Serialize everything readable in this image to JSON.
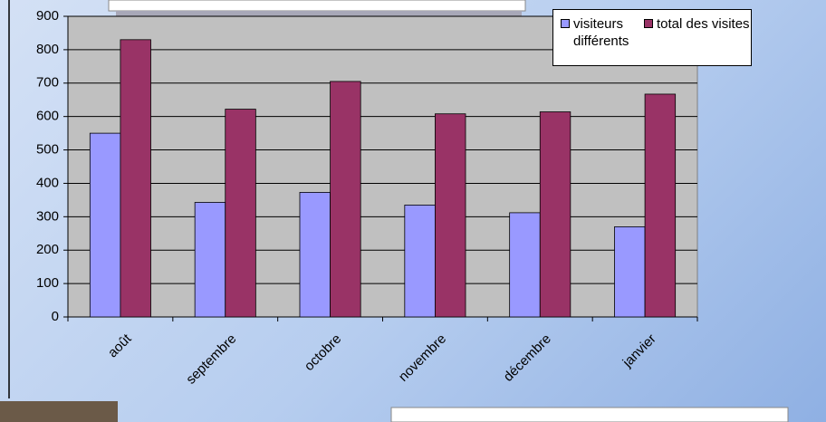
{
  "chart_data": {
    "type": "bar",
    "categories": [
      "août",
      "septembre",
      "octobre",
      "novembre",
      "décembre",
      "janvier"
    ],
    "series": [
      {
        "name": "visiteurs différents",
        "color": "#9999ff",
        "values": [
          550,
          343,
          373,
          335,
          312,
          270
        ]
      },
      {
        "name": "total des visites",
        "color": "#993366",
        "values": [
          830,
          622,
          705,
          608,
          614,
          667
        ]
      }
    ],
    "ylim": [
      0,
      900
    ],
    "yticks": [
      0,
      100,
      200,
      300,
      400,
      500,
      600,
      700,
      800,
      900
    ],
    "grid": true,
    "legend": "top-right"
  }
}
